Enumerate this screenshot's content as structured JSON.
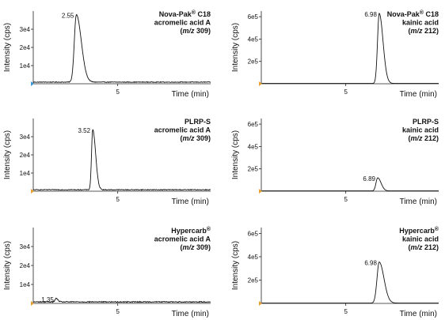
{
  "chart_data": [
    {
      "type": "line",
      "panel": "top-left",
      "title_lines": [
        "Nova-Pak® C18",
        "acromelic acid A",
        "(m/z 309)"
      ],
      "xlabel": "Time (min)",
      "ylabel": "Intensity (cps)",
      "xlim": [
        0,
        10.5
      ],
      "ylim": [
        0,
        40000
      ],
      "x_ticks": [
        5
      ],
      "x_tick_labels": [
        "5"
      ],
      "y_ticks": [
        10000,
        20000,
        30000
      ],
      "y_tick_labels": [
        "1e4",
        "2e4",
        "3e4"
      ],
      "peak_label": "2.55",
      "peak": {
        "x": 2.55,
        "y": 38000,
        "width": 0.12,
        "tail": 0.35
      },
      "baseline": 900,
      "noise": 180,
      "marker_color": "#3b9ad9",
      "series": [
        {
          "x": [
            0,
            2.0,
            2.25,
            2.4,
            2.5,
            2.55,
            2.6,
            2.7,
            2.85,
            3.0,
            3.5,
            10.5
          ],
          "y": [
            900,
            1000,
            3000,
            15000,
            32000,
            38000,
            30000,
            12000,
            4000,
            1500,
            900,
            900
          ]
        }
      ]
    },
    {
      "type": "line",
      "panel": "top-right",
      "title_lines": [
        "Nova-Pak® C18",
        "kainic acid",
        "(m/z 212)"
      ],
      "xlabel": "Time (min)",
      "ylabel": "Intensity (cps)",
      "xlim": [
        0,
        10.5
      ],
      "ylim": [
        0,
        650000
      ],
      "x_ticks": [
        5
      ],
      "x_tick_labels": [
        "5"
      ],
      "y_ticks": [
        200000,
        400000,
        600000
      ],
      "y_tick_labels": [
        "2e5",
        "4e5",
        "6e5"
      ],
      "peak_label": "6.98",
      "peak": {
        "x": 6.98,
        "y": 630000,
        "width": 0.1,
        "tail": 0.25
      },
      "baseline": 3000,
      "noise": 0,
      "marker_color": "#e8a030",
      "series": [
        {
          "x": [
            0,
            6.7,
            6.85,
            6.95,
            6.98,
            7.05,
            7.15,
            7.3,
            10.5
          ],
          "y": [
            3000,
            4000,
            200000,
            560000,
            630000,
            450000,
            120000,
            8000,
            3000
          ]
        }
      ]
    },
    {
      "type": "line",
      "panel": "middle-left",
      "title_lines": [
        "PLRP-S",
        "acromelic acid A",
        "(m/z 309)"
      ],
      "xlabel": "Time (min)",
      "ylabel": "Intensity (cps)",
      "xlim": [
        0,
        10.5
      ],
      "ylim": [
        0,
        40000
      ],
      "x_ticks": [
        5
      ],
      "x_tick_labels": [
        "5"
      ],
      "y_ticks": [
        10000,
        20000,
        30000
      ],
      "y_tick_labels": [
        "1e4",
        "2e4",
        "3e4"
      ],
      "peak_label": "3.52",
      "peak": {
        "x": 3.52,
        "y": 34000,
        "width": 0.07,
        "tail": 0.2
      },
      "baseline": 800,
      "noise": 200,
      "marker_color": "#e8a030",
      "series": [
        {
          "x": [
            0,
            3.3,
            3.4,
            3.48,
            3.52,
            3.56,
            3.65,
            3.8,
            10.5
          ],
          "y": [
            800,
            900,
            8000,
            26000,
            34000,
            28000,
            9000,
            1500,
            800
          ]
        }
      ]
    },
    {
      "type": "line",
      "panel": "middle-right",
      "title_lines": [
        "PLRP-S",
        "kainic acid",
        "(m/z 212)"
      ],
      "xlabel": "Time (min)",
      "ylabel": "Intensity (cps)",
      "xlim": [
        0,
        10.5
      ],
      "ylim": [
        0,
        650000
      ],
      "x_ticks": [
        5
      ],
      "x_tick_labels": [
        "5"
      ],
      "y_ticks": [
        200000,
        400000,
        600000
      ],
      "y_tick_labels": [
        "2e5",
        "4e5",
        "6e5"
      ],
      "peak_label": "6.89",
      "peak": {
        "x": 6.89,
        "y": 120000,
        "width": 0.1,
        "tail": 0.2
      },
      "baseline": 3000,
      "noise": 0,
      "marker_color": "#e8a030",
      "series": [
        {
          "x": [
            0,
            6.65,
            6.8,
            6.89,
            6.98,
            7.1,
            10.5
          ],
          "y": [
            3000,
            4000,
            70000,
            120000,
            80000,
            6000,
            3000
          ]
        }
      ]
    },
    {
      "type": "line",
      "panel": "bottom-left",
      "title_lines": [
        "Hypercarb®",
        "acromelic acid A",
        "(m/z 309)"
      ],
      "xlabel": "Time (min)",
      "ylabel": "Intensity (cps)",
      "xlim": [
        0,
        10.5
      ],
      "ylim": [
        0,
        40000
      ],
      "x_ticks": [
        5
      ],
      "x_tick_labels": [
        "5"
      ],
      "y_ticks": [
        10000,
        20000,
        30000
      ],
      "y_tick_labels": [
        "1e4",
        "2e4",
        "3e4"
      ],
      "peak_label": "1.35",
      "peak": {
        "x": 1.35,
        "y": 2600,
        "width": 0.06,
        "tail": 0.1
      },
      "baseline": 800,
      "noise": 250,
      "marker_color": "#e8a030",
      "series": [
        {
          "x": [
            0,
            1.25,
            1.35,
            1.45,
            10.5
          ],
          "y": [
            800,
            900,
            2600,
            1000,
            800
          ]
        }
      ]
    },
    {
      "type": "line",
      "panel": "bottom-right",
      "title_lines": [
        "Hypercarb®",
        "kainic acid",
        "(m/z 212)"
      ],
      "xlabel": "Time (min)",
      "ylabel": "Intensity (cps)",
      "xlim": [
        0,
        10.5
      ],
      "ylim": [
        0,
        650000
      ],
      "x_ticks": [
        5
      ],
      "x_tick_labels": [
        "5"
      ],
      "y_ticks": [
        200000,
        400000,
        600000
      ],
      "y_tick_labels": [
        "2e5",
        "4e5",
        "6e5"
      ],
      "peak_label": "6.98",
      "peak": {
        "x": 6.98,
        "y": 355000,
        "width": 0.13,
        "tail": 0.3
      },
      "baseline": 3000,
      "noise": 0,
      "marker_color": "#e8a030",
      "series": [
        {
          "x": [
            0,
            6.7,
            6.85,
            6.98,
            7.1,
            7.25,
            7.4,
            10.5
          ],
          "y": [
            3000,
            5000,
            200000,
            355000,
            300000,
            60000,
            8000,
            3000
          ]
        }
      ]
    }
  ]
}
